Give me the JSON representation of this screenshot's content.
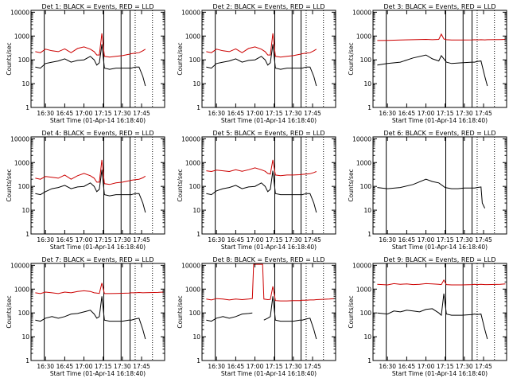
{
  "common": {
    "ylabel": "Counts/sec",
    "xlabel": "Start Time (01-Apr-14 16:18:40)",
    "xticks": [
      "16:30",
      "16:45",
      "17:00",
      "17:15",
      "17:30",
      "17:45"
    ],
    "xtick_values_min": [
      30,
      45,
      60,
      75,
      90,
      105
    ],
    "xrange_min": [
      18.67,
      123
    ],
    "yticks": [
      "1",
      "10",
      "100",
      "1000",
      "10000"
    ],
    "ytick_values": [
      1,
      10,
      100,
      1000,
      10000
    ],
    "ylim": [
      1,
      12000
    ],
    "yscale": "log",
    "vlines_solid_min": [
      29,
      75.5,
      89,
      96
    ],
    "vlines_dotted_min": [
      100,
      113.5
    ],
    "colors": {
      "events": "#000000",
      "lld": "#cc0000"
    }
  },
  "chart_data": [
    {
      "type": "line",
      "title": "Det 1: BLACK = Events, RED = LLD",
      "x_min": [
        22,
        26,
        30,
        35,
        40,
        45,
        50,
        55,
        60,
        65,
        68,
        70,
        72,
        74,
        76,
        80,
        85,
        90,
        95,
        97,
        100,
        103,
        106,
        108
      ],
      "series": [
        {
          "name": "BLACK = Events",
          "values": [
            50,
            45,
            70,
            80,
            90,
            110,
            80,
            95,
            100,
            140,
            100,
            60,
            75,
            450,
            45,
            40,
            45,
            45,
            45,
            45,
            50,
            50,
            20,
            8
          ]
        },
        {
          "name": "RED = LLD",
          "values": [
            220,
            200,
            280,
            240,
            220,
            290,
            200,
            300,
            350,
            280,
            220,
            160,
            160,
            1300,
            140,
            130,
            140,
            150,
            170,
            180,
            190,
            200,
            240,
            280
          ]
        }
      ]
    },
    {
      "type": "line",
      "title": "Det 2: BLACK = Events, RED = LLD",
      "x_min": [
        22,
        26,
        30,
        35,
        40,
        45,
        50,
        55,
        60,
        65,
        68,
        70,
        72,
        74,
        76,
        80,
        85,
        90,
        95,
        97,
        100,
        103,
        106,
        108
      ],
      "series": [
        {
          "name": "BLACK = Events",
          "values": [
            50,
            45,
            70,
            80,
            90,
            110,
            80,
            95,
            100,
            140,
            100,
            60,
            75,
            450,
            45,
            40,
            45,
            45,
            45,
            45,
            50,
            50,
            20,
            8
          ]
        },
        {
          "name": "RED = LLD",
          "values": [
            220,
            200,
            280,
            240,
            220,
            290,
            200,
            300,
            350,
            280,
            220,
            160,
            160,
            1300,
            140,
            130,
            140,
            150,
            170,
            180,
            190,
            200,
            240,
            280
          ]
        }
      ]
    },
    {
      "type": "line",
      "title": "Det 3: BLACK = Events, RED = LLD",
      "x_min": [
        22,
        30,
        40,
        50,
        60,
        65,
        70,
        72,
        74,
        76,
        80,
        88,
        96,
        98,
        100,
        103,
        106,
        108,
        118,
        122
      ],
      "series": [
        {
          "name": "BLACK = Events",
          "values": [
            60,
            70,
            80,
            120,
            160,
            110,
            90,
            150,
            110,
            80,
            70,
            75,
            80,
            80,
            85,
            90,
            20,
            8,
            null,
            null
          ]
        },
        {
          "name": "RED = LLD",
          "values": [
            650,
            660,
            680,
            700,
            720,
            700,
            720,
            1200,
            750,
            700,
            680,
            680,
            690,
            700,
            690,
            700,
            690,
            700,
            710,
            720
          ]
        }
      ]
    },
    {
      "type": "line",
      "title": "Det 4: BLACK = Events, RED = LLD",
      "x_min": [
        22,
        26,
        30,
        35,
        40,
        45,
        50,
        55,
        60,
        65,
        68,
        70,
        72,
        74,
        76,
        80,
        85,
        90,
        95,
        97,
        100,
        103,
        106,
        108
      ],
      "series": [
        {
          "name": "BLACK = Events",
          "values": [
            50,
            45,
            60,
            80,
            90,
            110,
            80,
            95,
            100,
            140,
            100,
            60,
            75,
            500,
            45,
            40,
            45,
            45,
            45,
            45,
            50,
            50,
            20,
            8
          ]
        },
        {
          "name": "RED = LLD",
          "values": [
            220,
            200,
            260,
            240,
            220,
            300,
            200,
            280,
            350,
            280,
            220,
            150,
            150,
            1300,
            130,
            120,
            140,
            150,
            170,
            180,
            190,
            200,
            230,
            270
          ]
        }
      ]
    },
    {
      "type": "line",
      "title": "Det 5: BLACK = Events, RED = LLD",
      "x_min": [
        22,
        26,
        30,
        35,
        40,
        45,
        50,
        55,
        60,
        65,
        68,
        70,
        72,
        74,
        76,
        80,
        85,
        90,
        95,
        97,
        100,
        103,
        106,
        108
      ],
      "series": [
        {
          "name": "BLACK = Events",
          "values": [
            50,
            45,
            65,
            80,
            90,
            110,
            80,
            95,
            100,
            140,
            100,
            60,
            75,
            450,
            50,
            45,
            45,
            45,
            45,
            45,
            50,
            50,
            20,
            8
          ]
        },
        {
          "name": "RED = LLD",
          "values": [
            450,
            420,
            480,
            450,
            420,
            500,
            430,
            500,
            600,
            500,
            430,
            350,
            330,
            1300,
            300,
            280,
            300,
            300,
            310,
            320,
            330,
            340,
            380,
            420
          ]
        }
      ]
    },
    {
      "type": "line",
      "title": "Det 6: BLACK = Events, RED = LLD",
      "x_min": [
        22,
        30,
        40,
        50,
        60,
        65,
        70,
        75,
        80,
        85,
        90,
        95,
        98,
        100,
        103,
        104,
        106
      ],
      "series": [
        {
          "name": "BLACK = Events",
          "values": [
            90,
            80,
            90,
            120,
            200,
            160,
            140,
            90,
            80,
            80,
            85,
            85,
            85,
            90,
            95,
            20,
            12
          ]
        }
      ]
    },
    {
      "type": "line",
      "title": "Det 7: BLACK = Events, RED = LLD",
      "x_min": [
        22,
        26,
        30,
        35,
        40,
        45,
        50,
        55,
        60,
        65,
        68,
        70,
        72,
        74,
        76,
        80,
        85,
        90,
        95,
        97,
        100,
        103,
        106,
        108,
        118,
        122
      ],
      "series": [
        {
          "name": "BLACK = Events",
          "values": [
            50,
            45,
            60,
            70,
            60,
            70,
            90,
            95,
            110,
            130,
            90,
            60,
            70,
            500,
            50,
            45,
            45,
            45,
            50,
            50,
            55,
            60,
            20,
            8,
            null,
            null
          ]
        },
        {
          "name": "RED = LLD",
          "values": [
            700,
            650,
            750,
            700,
            650,
            750,
            700,
            800,
            850,
            800,
            700,
            680,
            660,
            1800,
            650,
            650,
            660,
            670,
            680,
            700,
            700,
            720,
            700,
            710,
            730,
            750
          ]
        }
      ]
    },
    {
      "type": "line",
      "title": "Det 8: BLACK = Events, RED = LLD",
      "x_min": [
        22,
        26,
        30,
        35,
        40,
        45,
        50,
        55,
        58,
        59,
        66,
        67,
        70,
        72,
        74,
        76,
        80,
        85,
        90,
        95,
        97,
        100,
        103,
        106,
        108,
        118,
        122
      ],
      "series": [
        {
          "name": "BLACK = Events",
          "values": [
            50,
            45,
            60,
            70,
            60,
            70,
            90,
            95,
            100,
            null,
            null,
            50,
            60,
            70,
            500,
            50,
            45,
            45,
            45,
            50,
            50,
            55,
            60,
            20,
            8,
            null,
            null
          ]
        },
        {
          "name": "RED = LLD",
          "values": [
            380,
            350,
            400,
            380,
            350,
            380,
            360,
            380,
            400,
            11000,
            11000,
            380,
            360,
            370,
            1300,
            330,
            320,
            320,
            330,
            330,
            340,
            340,
            350,
            350,
            360,
            380,
            400
          ]
        }
      ]
    },
    {
      "type": "line",
      "title": "Det 9: BLACK = Events, RED = LLD",
      "x_min": [
        22,
        30,
        35,
        40,
        45,
        50,
        55,
        60,
        65,
        70,
        72,
        74,
        76,
        80,
        88,
        96,
        98,
        100,
        103,
        106,
        108,
        118,
        122
      ],
      "series": [
        {
          "name": "BLACK = Events",
          "values": [
            100,
            90,
            120,
            110,
            130,
            120,
            110,
            140,
            150,
            100,
            80,
            650,
            90,
            80,
            80,
            85,
            90,
            85,
            90,
            20,
            8,
            null,
            null
          ]
        },
        {
          "name": "RED = LLD",
          "values": [
            1600,
            1500,
            1700,
            1600,
            1650,
            1550,
            1600,
            1700,
            1650,
            1600,
            1550,
            2400,
            1550,
            1500,
            1500,
            1550,
            1600,
            1550,
            1600,
            1550,
            1550,
            1600,
            1650
          ]
        }
      ]
    }
  ]
}
